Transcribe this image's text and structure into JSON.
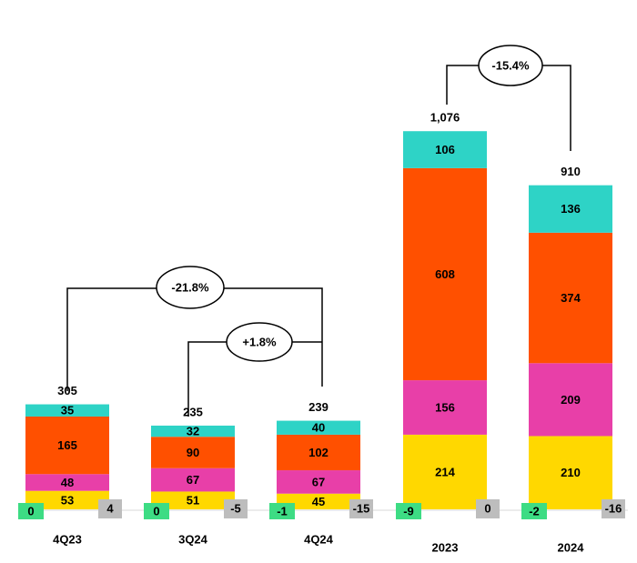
{
  "chart_data": {
    "type": "stacked_bar",
    "categories": [
      "4Q23",
      "3Q24",
      "4Q24",
      "2023",
      "2024"
    ],
    "series": [
      {
        "color": "#ffd800",
        "values": [
          53,
          51,
          45,
          214,
          210
        ]
      },
      {
        "color": "#e83fa8",
        "values": [
          48,
          67,
          67,
          156,
          209
        ]
      },
      {
        "color": "#ff5000",
        "values": [
          165,
          90,
          102,
          608,
          374
        ]
      },
      {
        "color": "#2ed3c6",
        "values": [
          35,
          32,
          40,
          106,
          136
        ]
      }
    ],
    "left_adjustments": {
      "color": "#3ddc84",
      "values": [
        0,
        0,
        -1,
        -9,
        -2
      ]
    },
    "right_adjustments": {
      "color": "#bdbdbd",
      "values": [
        4,
        -5,
        -15,
        0,
        -16
      ]
    },
    "totals": {
      "values": [
        305,
        235,
        239,
        1076,
        910
      ],
      "value_labels": [
        "305",
        "235",
        "239",
        "1,076",
        "910"
      ]
    },
    "annotations": [
      "-21.8%",
      "+1.8%",
      "-15.4%"
    ],
    "ylim": [
      0,
      1460
    ]
  }
}
